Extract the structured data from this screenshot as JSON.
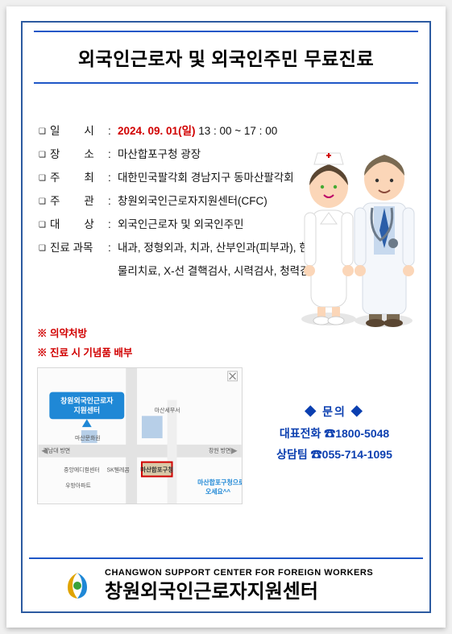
{
  "colors": {
    "accent": "#1f57c7",
    "frame": "#2c5aa0",
    "alert": "#d10000",
    "text": "#111111",
    "bg": "#ffffff"
  },
  "title": "외국인근로자 및 외국인주민 무료진료",
  "details": [
    {
      "label": "일        시",
      "value_html": "<span class='date-red'>2024. 09. 01(</span><span class='day-red'>일</span><span class='date-red'>)</span> 13 : 00  ~  17 : 00"
    },
    {
      "label": "장        소",
      "value": "마산합포구청 광장"
    },
    {
      "label": "주        최",
      "value": "대한민국팔각회 경남지구 동마산팔각회"
    },
    {
      "label": "주        관",
      "value": "창원외국인근로자지원센터(CFC)"
    },
    {
      "label": "대        상",
      "value": "외국인근로자 및 외국인주민"
    },
    {
      "label": "진료 과목",
      "value": "내과, 정형외과, 치과, 산부인과(피부과), 한방과,",
      "cont": "물리치료, X-선 결핵검사, 시력검사, 청력검사"
    }
  ],
  "notes": [
    "※ 의약처방",
    "※ 진료 시 기념품 배부"
  ],
  "map": {
    "center_box_label": "창원외국인근로자\n지원센터",
    "center_box_color": "#1f88d6",
    "labels": {
      "tax": "마산세무서",
      "culture": "마산문화원",
      "left": "경남대 방면",
      "right": "창원 방면",
      "bottom": "우방아파트",
      "hospital": "중앙메디컬센터",
      "telecom": "SK텔레콤",
      "target": "마산합포구청",
      "hint": "마산합포구청으로\n오세요^^"
    },
    "target_border": "#d10000",
    "road_color": "#d7d7d7",
    "hint_color": "#1f88d6"
  },
  "contact": {
    "head": "◆  문의  ◆",
    "lines": [
      "대표전화 ☎1800-5048",
      "상담팀 ☎055-714-1095"
    ]
  },
  "illustration": {
    "nurse": {
      "uniform": "#ffffff",
      "skin": "#fbd6b8",
      "hair": "#5a4632",
      "cross": "#d10000"
    },
    "doctor": {
      "coat": "#f4f7fb",
      "shirt": "#c7d9ee",
      "tie": "#2b5ea8",
      "skin": "#fbd6b8",
      "hair": "#7a6a52",
      "stethoscope": "#6c7a89"
    }
  },
  "footer": {
    "en": "CHANGWON SUPPORT CENTER FOR FOREIGN WORKERS",
    "ko": "창원외국인근로자지원센터",
    "logo_colors": {
      "a": "#e0a400",
      "b": "#1f88d6",
      "c": "#3aa23a"
    }
  }
}
